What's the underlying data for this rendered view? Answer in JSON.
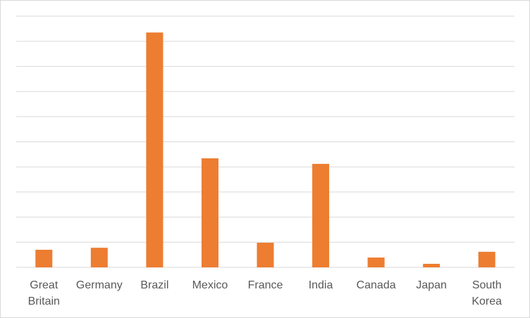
{
  "chart_data": {
    "type": "bar",
    "categories": [
      "Great Britain",
      "Germany",
      "Brazil",
      "Mexico",
      "France",
      "India",
      "Canada",
      "Japan",
      "South Korea"
    ],
    "values": [
      0.7,
      0.78,
      9.35,
      4.34,
      0.98,
      4.12,
      0.39,
      0.14,
      0.62
    ],
    "color": "#ed7d31",
    "ylim": [
      0,
      10
    ],
    "yticks": [
      0,
      1,
      2,
      3,
      4,
      5,
      6,
      7,
      8,
      9,
      10
    ],
    "grid": true
  }
}
